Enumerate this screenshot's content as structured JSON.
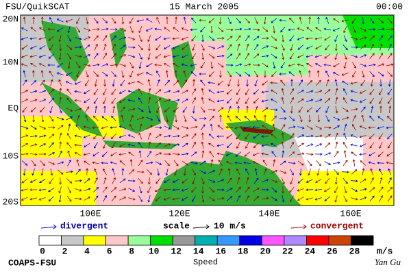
{
  "header": {
    "left": "FSU/QuikSCAT",
    "center": "15 March 2005",
    "right": "00:00"
  },
  "map": {
    "lat_labels": [
      "20N",
      "10N",
      "EQ",
      "10S",
      "20S"
    ],
    "lon_labels": [
      "100E",
      "120E",
      "140E",
      "160E"
    ]
  },
  "legend": {
    "divergent": "divergent",
    "scale": "scale",
    "scale_value": "10 m/s",
    "convergent": "convergent"
  },
  "colorbar": {
    "ticks": [
      0,
      2,
      4,
      6,
      8,
      10,
      12,
      14,
      16,
      18,
      20,
      22,
      24,
      26,
      28
    ],
    "colors": [
      "#ffffff",
      "#c8c8c8",
      "#ffff00",
      "#ffc8c8",
      "#99ff99",
      "#00e000",
      "#999999",
      "#00b0b0",
      "#3399ff",
      "#0000e0",
      "#ff55ff",
      "#b088ff",
      "#ff0000",
      "#cc4400",
      "#000000"
    ],
    "unit": "m/s",
    "label": "Speed"
  },
  "footer": {
    "left": "COAPS-FSU",
    "right": "Yan Gu"
  }
}
